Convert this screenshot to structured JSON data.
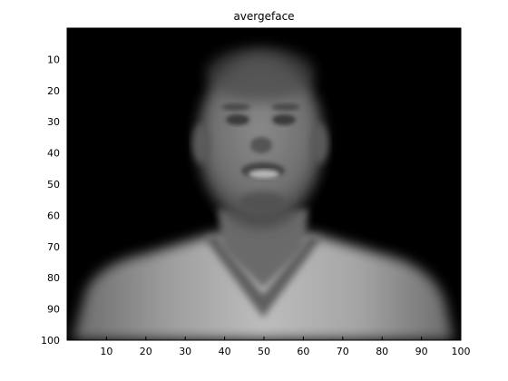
{
  "title": "avergeface",
  "colormap": "gray",
  "background_color": "#000000",
  "axes": {
    "x": {
      "range": [
        0,
        100
      ],
      "ticks": [
        10,
        20,
        30,
        40,
        50,
        60,
        70,
        80,
        90,
        100
      ]
    },
    "y": {
      "range": [
        0,
        100
      ],
      "ticks": [
        10,
        20,
        30,
        40,
        50,
        60,
        70,
        80,
        90,
        100
      ],
      "direction": "reversed"
    }
  },
  "image": {
    "subject": "averaged grayscale face"
  }
}
